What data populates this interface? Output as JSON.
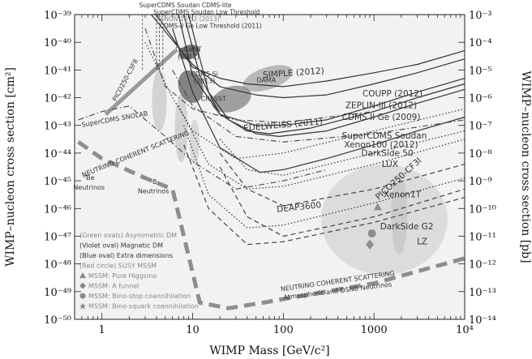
{
  "chart_data": {
    "type": "line",
    "title": "",
    "xlabel": "WIMP Mass [GeV/c²]",
    "ylabel": "WIMP–nucleon cross section [cm²]",
    "ylabel_right": "WIMP–nucleon cross section [pb]",
    "x_scale": "log",
    "y_scale": "log",
    "xlim": [
      0.5,
      10000
    ],
    "ylim": [
      1e-50,
      1e-39
    ],
    "x_ticks": [
      {
        "v": 1,
        "label": "1"
      },
      {
        "v": 10,
        "label": "10"
      },
      {
        "v": 100,
        "label": "100"
      },
      {
        "v": 1000,
        "label": "1000"
      },
      {
        "v": 10000,
        "label": "10⁴"
      }
    ],
    "y_ticks_left": [
      {
        "v": -39,
        "label": "10⁻³⁹"
      },
      {
        "v": -40,
        "label": "10⁻⁴⁰"
      },
      {
        "v": -41,
        "label": "10⁻⁴¹"
      },
      {
        "v": -42,
        "label": "10⁻⁴²"
      },
      {
        "v": -43,
        "label": "10⁻⁴³"
      },
      {
        "v": -44,
        "label": "10⁻⁴⁴"
      },
      {
        "v": -45,
        "label": "10⁻⁴⁵"
      },
      {
        "v": -46,
        "label": "10⁻⁴⁶"
      },
      {
        "v": -47,
        "label": "10⁻⁴⁷"
      },
      {
        "v": -48,
        "label": "10⁻⁴⁸"
      },
      {
        "v": -49,
        "label": "10⁻⁴⁹"
      },
      {
        "v": -50,
        "label": "10⁻⁵⁰"
      }
    ],
    "y_ticks_right": [
      {
        "v": -39,
        "label": "10⁻³"
      },
      {
        "v": -40,
        "label": "10⁻⁴"
      },
      {
        "v": -41,
        "label": "10⁻⁵"
      },
      {
        "v": -42,
        "label": "10⁻⁶"
      },
      {
        "v": -43,
        "label": "10⁻⁷"
      },
      {
        "v": -44,
        "label": "10⁻⁸"
      },
      {
        "v": -45,
        "label": "10⁻⁹"
      },
      {
        "v": -46,
        "label": "10⁻¹⁰"
      },
      {
        "v": -47,
        "label": "10⁻¹¹"
      },
      {
        "v": -48,
        "label": "10⁻¹²"
      },
      {
        "v": -49,
        "label": "10⁻¹³"
      },
      {
        "v": -50,
        "label": "10⁻¹⁴"
      }
    ],
    "top_labels": [
      {
        "text": "SuperCDMS Soudan CDMS-lite",
        "x": 2.8
      },
      {
        "text": "SuperCDMS Soudan Low Threshold",
        "x": 4.0
      },
      {
        "text": "XENON 10 S2 (2013)",
        "x": 4.3
      },
      {
        "text": "CDMS-II Ge Low Threshold (2011)",
        "x": 4.7
      }
    ],
    "regions": [
      {
        "name": "CoGeNT (2012)",
        "x": [
          7,
          12
        ],
        "y": [
          -40.6,
          -40.1
        ],
        "color": "#5a5a5a"
      },
      {
        "name": "DAMA",
        "x": [
          35,
          130
        ],
        "y": [
          -41.7,
          -40.9
        ],
        "color": "#aaaaaa"
      },
      {
        "name": "CRESST",
        "x": [
          16,
          45
        ],
        "y": [
          -42.5,
          -41.6
        ],
        "color": "#8a8a8a"
      },
      {
        "name": "CDMS Si (2013)",
        "x": [
          7,
          13
        ],
        "y": [
          -42.2,
          -41.0
        ],
        "color": "#666666"
      }
    ],
    "series": [
      {
        "name": "SIMPLE (2012)",
        "style": "solid",
        "x": [
          4,
          10,
          20,
          40,
          100,
          300,
          1000,
          3000,
          10000
        ],
        "y": [
          -39.0,
          -40.9,
          -41.3,
          -41.5,
          -41.6,
          -41.4,
          -41.1,
          -40.8,
          -40.3
        ]
      },
      {
        "name": "COUPP (2012)",
        "style": "solid",
        "x": [
          3.5,
          10,
          20,
          50,
          100,
          300,
          1000,
          3000,
          10000
        ],
        "y": [
          -39.0,
          -40.8,
          -41.6,
          -41.9,
          -42.0,
          -41.9,
          -41.5,
          -41.1,
          -40.6
        ]
      },
      {
        "name": "ZEPLIN-III (2012)",
        "style": "solid",
        "x": [
          7,
          10,
          20,
          50,
          100,
          300,
          1000,
          3000,
          10000
        ],
        "y": [
          -39.0,
          -41.2,
          -42.6,
          -43.0,
          -43.0,
          -42.8,
          -42.3,
          -41.8,
          -41.3
        ]
      },
      {
        "name": "CDMS II Ge (2009)",
        "style": "solid",
        "x": [
          8,
          12,
          20,
          40,
          70,
          200,
          1000,
          3000,
          10000
        ],
        "y": [
          -39.0,
          -41.2,
          -42.6,
          -43.2,
          -43.3,
          -43.1,
          -42.5,
          -42.0,
          -41.5
        ]
      },
      {
        "name": "EDELWEISS (2011)",
        "style": "solid",
        "x": [
          9,
          15,
          25,
          50,
          90,
          300,
          1000,
          3000,
          10000
        ],
        "y": [
          -39.0,
          -41.8,
          -42.8,
          -43.3,
          -43.4,
          -43.2,
          -42.7,
          -42.2,
          -41.7
        ]
      },
      {
        "name": "Xenon100 (2012)",
        "style": "solid",
        "x": [
          6,
          10,
          20,
          55,
          100,
          300,
          1000,
          3000,
          10000
        ],
        "y": [
          -39.5,
          -41.8,
          -43.8,
          -44.7,
          -44.6,
          -44.2,
          -43.7,
          -43.2,
          -42.7
        ]
      },
      {
        "name": "SuperCDMS Soudan",
        "style": "dotted",
        "x": [
          3,
          6,
          10,
          30,
          100,
          1000,
          10000
        ],
        "y": [
          -40.0,
          -42.0,
          -43.2,
          -44.2,
          -44.0,
          -43.2,
          -42.4
        ]
      },
      {
        "name": "DarkSide 50",
        "style": "dotted",
        "x": [
          20,
          40,
          100,
          1000,
          10000
        ],
        "y": [
          -43.5,
          -44.6,
          -44.8,
          -44.0,
          -43.2
        ]
      },
      {
        "name": "LUX",
        "style": "dotted",
        "x": [
          7,
          15,
          40,
          100,
          1000,
          10000
        ],
        "y": [
          -42.3,
          -44.4,
          -45.3,
          -45.2,
          -44.4,
          -43.5
        ]
      },
      {
        "name": "PICO250-CF3I",
        "style": "dashdot",
        "x": [
          6,
          10,
          30,
          100,
          1000,
          10000
        ],
        "y": [
          -41.0,
          -42.3,
          -43.4,
          -43.6,
          -43.3,
          -42.8
        ]
      },
      {
        "name": "Xenon1T",
        "style": "dotted",
        "x": [
          8,
          15,
          40,
          100,
          1000,
          10000
        ],
        "y": [
          -43.0,
          -45.5,
          -46.7,
          -46.6,
          -45.8,
          -44.9
        ]
      },
      {
        "name": "DEAP3600",
        "style": "dashed",
        "x": [
          20,
          40,
          100,
          1000,
          10000
        ],
        "y": [
          -44.0,
          -45.3,
          -45.9,
          -45.3,
          -44.4
        ]
      },
      {
        "name": "DarkSide G2",
        "style": "dashed",
        "x": [
          20,
          40,
          100,
          1000,
          10000
        ],
        "y": [
          -44.5,
          -46.3,
          -47.0,
          -46.3,
          -45.3
        ]
      },
      {
        "name": "LZ",
        "style": "dashed",
        "x": [
          8,
          15,
          40,
          100,
          1000,
          10000
        ],
        "y": [
          -43.7,
          -46.0,
          -47.3,
          -47.2,
          -46.5,
          -45.6
        ]
      },
      {
        "name": "SuperCDMS SNOLAB",
        "style": "dashdot",
        "x": [
          0.55,
          1,
          2,
          5,
          10,
          30,
          100,
          300
        ],
        "y": [
          -42.8,
          -42.5,
          -42.3,
          -43.4,
          -44.3,
          -45.3,
          -45.0,
          -44.6
        ]
      },
      {
        "name": "PICO250-C3F8",
        "style": "dashdot",
        "x": [
          3,
          5,
          10,
          30,
          100,
          1000
        ],
        "y": [
          -39.5,
          -41.6,
          -42.4,
          -42.8,
          -42.9,
          -42.5
        ]
      },
      {
        "name": "NEUTRINO COHERENT SCATTERING",
        "style": "thick-dashed",
        "x": [
          0.55,
          1,
          3,
          6,
          8,
          12,
          25,
          60,
          200,
          1000,
          10000
        ],
        "y": [
          -43.6,
          -44.2,
          -44.9,
          -45.3,
          -47.0,
          -49.4,
          -49.6,
          -49.4,
          -49.1,
          -48.7,
          -47.8
        ]
      }
    ],
    "labels": [
      {
        "text": "CoGeNT",
        "x": 9.0,
        "y": -40.33
      },
      {
        "text": "(2012)",
        "x": 9.0,
        "y": -40.6
      },
      {
        "text": "CDMS Si",
        "x": 13.5,
        "y": -41.22
      },
      {
        "text": "(2013)",
        "x": 13.5,
        "y": -41.47
      },
      {
        "text": "DAMA",
        "x": 65,
        "y": -41.45
      },
      {
        "text": "CRESST",
        "x": 17,
        "y": -42.12
      },
      {
        "text": "SIMPLE (2012)",
        "x": 130,
        "y": -41.2
      },
      {
        "text": "COUPP (2012)",
        "x": 1600,
        "y": -41.95
      },
      {
        "text": "ZEPLIN-III (2012)",
        "x": 1200,
        "y": -42.38
      },
      {
        "text": "CDMS II Ge (2009)",
        "x": 1200,
        "y": -42.8
      },
      {
        "text": "EDELWEISS (2011)",
        "x": 100,
        "y": -43.08
      },
      {
        "text": "SuperCDMS Soudan",
        "x": 1300,
        "y": -43.47
      },
      {
        "text": "Xenon100 (2012)",
        "x": 1200,
        "y": -43.8
      },
      {
        "text": "DarkSide 50",
        "x": 1400,
        "y": -44.1
      },
      {
        "text": "LUX",
        "x": 1500,
        "y": -44.5
      },
      {
        "text": "PICO250-CF3I",
        "x": 1950,
        "y": -45.0
      },
      {
        "text": "Xenon1T",
        "x": 2050,
        "y": -45.6
      },
      {
        "text": "DEAP3600",
        "x": 150,
        "y": -46.05
      },
      {
        "text": "DarkSide G2",
        "x": 2300,
        "y": -46.75
      },
      {
        "text": "LZ",
        "x": 3400,
        "y": -47.3
      },
      {
        "text": "SuperCDMS SNOLAB",
        "x": 1.4,
        "y": -42.85
      },
      {
        "text": "PICO250-C3F8",
        "x": 1.9,
        "y": -41.4
      },
      {
        "text": "NEUTRINO COHERENT SCATTERING",
        "x": 2.4,
        "y": -44.1
      },
      {
        "text": "NEUTRINO COHERENT SCATTERING",
        "x": 400,
        "y": -48.7
      },
      {
        "text": "Atmospheric and DSNB Neutrinos",
        "x": 400,
        "y": -49.05
      },
      {
        "text": "⁷Be",
        "x": 0.72,
        "y": -44.97
      },
      {
        "text": "Neutrinos",
        "x": 0.72,
        "y": -45.32
      },
      {
        "text": "⁸B",
        "x": 3.7,
        "y": -45.12
      },
      {
        "text": "Neutrinos",
        "x": 3.7,
        "y": -45.45
      }
    ],
    "legend": {
      "placement": "bottom-left",
      "items": [
        {
          "text": "(Green ovals) Asymmetric DM",
          "color": "#888888",
          "marker": ""
        },
        {
          "text": "(Violet oval) Magnetic DM",
          "color": "#333333",
          "marker": ""
        },
        {
          "text": "(Blue oval) Extra dimensions",
          "color": "#333333",
          "marker": ""
        },
        {
          "text": "(Red circle) SUSY MSSM",
          "color": "#888888",
          "marker": ""
        },
        {
          "text": "MSSM: Pure Higgsino",
          "color": "#888888",
          "marker": "triangle"
        },
        {
          "text": "MSSM: A funnel",
          "color": "#888888",
          "marker": "diamond"
        },
        {
          "text": "MSSM: Bino-stop coannihilation",
          "color": "#888888",
          "marker": "circle"
        },
        {
          "text": "MSSM: Bino-squark coannihilation",
          "color": "#888888",
          "marker": "star"
        }
      ]
    },
    "colors": {
      "background": "#f2f2f2",
      "axis": "#222222",
      "ovals": "#c8c8c8",
      "susy_circle": "#d4d4d4",
      "neutrino_floor": "#8e8e8e"
    }
  }
}
